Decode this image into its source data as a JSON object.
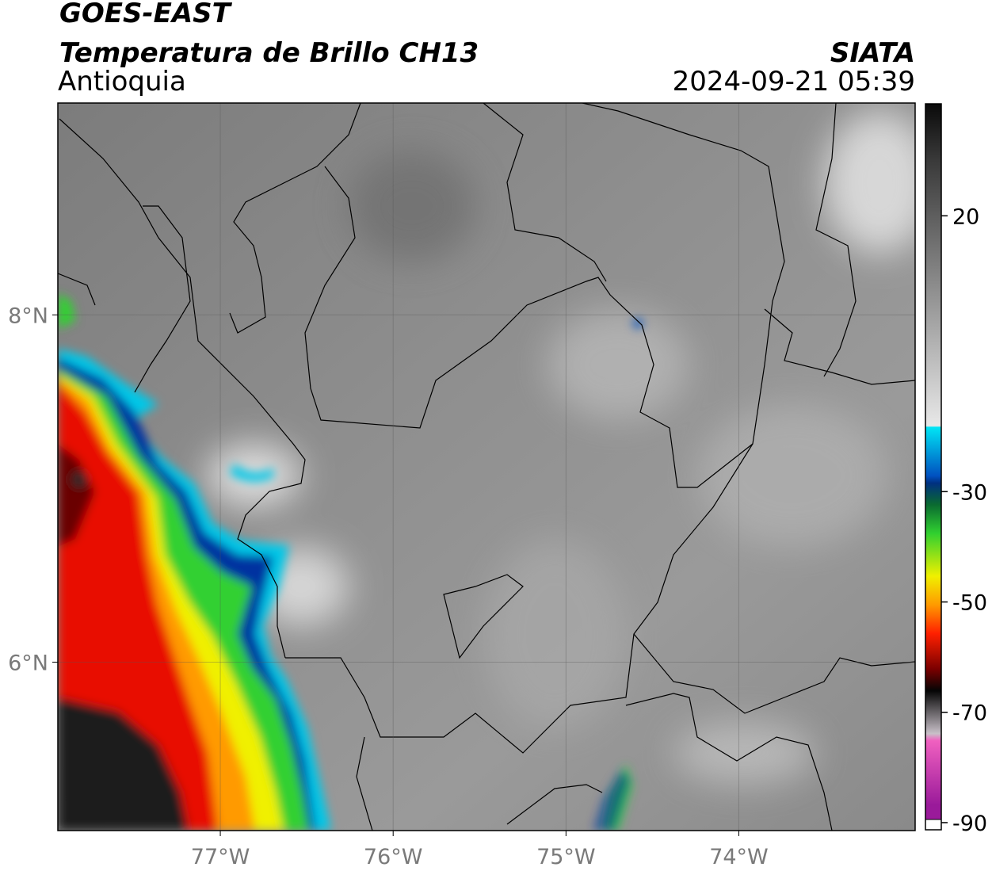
{
  "header": {
    "title": "GOES-EAST",
    "subtitle": "Temperatura de Brillo CH13",
    "region": "Antioquia",
    "source": "SIATA",
    "datetime": "2024-09-21 05:39"
  },
  "map": {
    "xlim": [
      -77.94,
      -72.98
    ],
    "ylim": [
      5.03,
      9.22
    ],
    "xticks": [
      {
        "value": -77,
        "label": "77°W"
      },
      {
        "value": -76,
        "label": "76°W"
      },
      {
        "value": -75,
        "label": "75°W"
      },
      {
        "value": -74,
        "label": "74°W"
      }
    ],
    "yticks": [
      {
        "value": 8,
        "label": "8°N"
      },
      {
        "value": 6,
        "label": "6°N"
      }
    ]
  },
  "colorbar": {
    "lim": [
      -91.3,
      40.3
    ],
    "ticks": [
      20,
      -30,
      -50,
      -70,
      -90
    ]
  }
}
